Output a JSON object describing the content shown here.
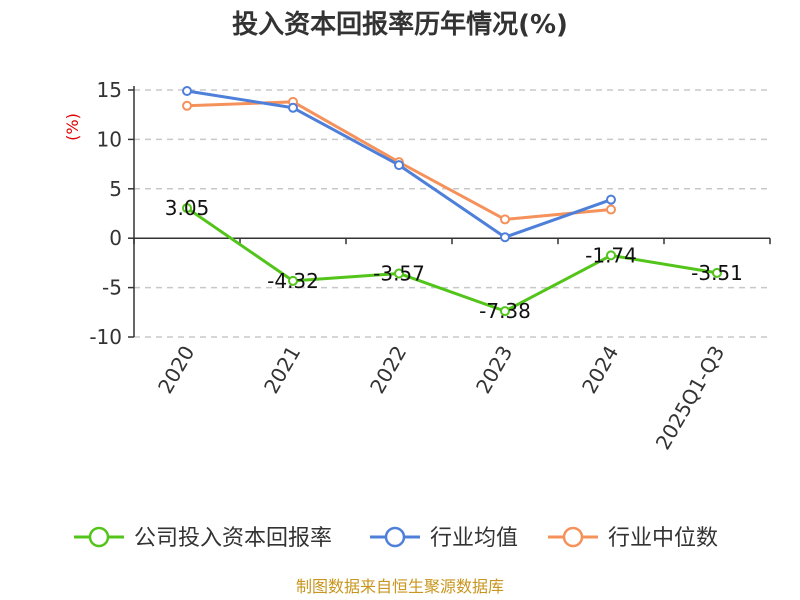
{
  "chart_data": {
    "type": "line",
    "title": "投入资本回报率历年情况(%)",
    "ylabel": "(%)",
    "categories": [
      "2020",
      "2021",
      "2022",
      "2023",
      "2024",
      "2025Q1-Q3"
    ],
    "ylim": [
      -10,
      15
    ],
    "yticks": [
      15,
      10,
      5,
      0,
      -5,
      -10
    ],
    "grid": true,
    "legend_position": "bottom",
    "series": [
      {
        "name": "公司投入资本回报率",
        "color": "#52c41a",
        "values": [
          3.05,
          -4.32,
          -3.57,
          -7.38,
          -1.74,
          -3.51
        ],
        "labels": [
          "3.05",
          "-4.32",
          "-3.57",
          "-7.38",
          "-1.74",
          "-3.51"
        ]
      },
      {
        "name": "行业均值",
        "color": "#4e7fd9",
        "values": [
          14.9,
          13.2,
          7.4,
          0.1,
          3.9,
          null
        ]
      },
      {
        "name": "行业中位数",
        "color": "#f5915a",
        "values": [
          13.4,
          13.8,
          7.7,
          1.9,
          2.9,
          null
        ]
      }
    ]
  },
  "source": "制图数据来自恒生聚源数据库"
}
